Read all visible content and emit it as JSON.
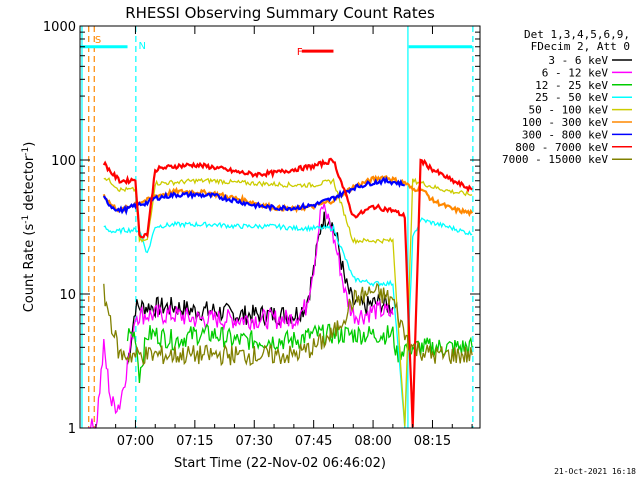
{
  "chart_data": {
    "type": "line",
    "title": "RHESSI Observing Summary Count Rates",
    "xlabel": "Start Time (22-Nov-02 06:46:02)",
    "ylabel_main": "Count Rate (s",
    "ylabel_sup1": "-1",
    "ylabel_mid": " detector",
    "ylabel_sup2": "-1",
    "ylabel_end": ")",
    "y_scale": "log",
    "ylim": [
      1,
      1000
    ],
    "yticks": [
      {
        "value": 1,
        "label": "1"
      },
      {
        "value": 10,
        "label": "10"
      },
      {
        "value": 100,
        "label": "100"
      },
      {
        "value": 1000,
        "label": "1000"
      }
    ],
    "xlim": [
      406,
      507
    ],
    "xticks": [
      {
        "value": 420,
        "label": "07:00"
      },
      {
        "value": 435,
        "label": "07:15"
      },
      {
        "value": 450,
        "label": "07:30"
      },
      {
        "value": 465,
        "label": "07:45"
      },
      {
        "value": 480,
        "label": "08:00"
      },
      {
        "value": 495,
        "label": "08:15"
      }
    ],
    "legend_header": [
      "Det 1,3,4,5,6,9,",
      "FDecim 2, Att 0"
    ],
    "legend_position": "right",
    "series": [
      {
        "name": "3 - 6 keV",
        "color": "#000000",
        "x": [
          418,
          420,
          425,
          430,
          435,
          440,
          445,
          450,
          455,
          460,
          463,
          465,
          467,
          469,
          471,
          473,
          475,
          478,
          480,
          482,
          485
        ],
        "y": [
          3,
          8,
          8,
          8,
          7.5,
          7.5,
          7,
          7,
          7,
          7,
          8,
          15,
          35,
          38,
          25,
          12,
          8.5,
          8,
          8.5,
          8.5,
          8
        ]
      },
      {
        "name": "6 - 12 keV",
        "color": "#ff00ff",
        "x": [
          408,
          410,
          412,
          414,
          416,
          418,
          420,
          425,
          430,
          435,
          440,
          445,
          450,
          455,
          460,
          463,
          465,
          467,
          469,
          471,
          473,
          475,
          478,
          480,
          482,
          485
        ],
        "y": [
          1,
          1,
          4,
          1.5,
          1.5,
          3,
          7,
          7,
          7,
          6.5,
          6.5,
          6.5,
          6.5,
          6.5,
          6.5,
          8,
          16,
          45,
          35,
          20,
          10,
          7,
          7,
          7.5,
          7.5,
          7
        ]
      },
      {
        "name": "12 - 25 keV",
        "color": "#00cc00",
        "x": [
          418,
          420,
          421,
          423,
          425,
          430,
          435,
          440,
          445,
          450,
          455,
          460,
          465,
          470,
          475,
          480,
          485,
          486,
          488,
          490,
          495,
          500,
          505
        ],
        "y": [
          5,
          5,
          2.5,
          5,
          5,
          4.5,
          5,
          5,
          4.5,
          4.5,
          4.5,
          4.5,
          5,
          5,
          5,
          5,
          5,
          3.5,
          4,
          4,
          4,
          4,
          4
        ]
      },
      {
        "name": "25 - 50 keV",
        "color": "#00ffff",
        "x": [
          412,
          413,
          415,
          417,
          419,
          421,
          423,
          425,
          430,
          435,
          440,
          445,
          450,
          455,
          460,
          465,
          470,
          475,
          480,
          485,
          488,
          490,
          492,
          495,
          500,
          505
        ],
        "y": [
          32,
          30,
          29,
          30,
          30,
          30,
          20,
          32,
          33,
          33,
          33,
          32,
          32,
          32,
          31,
          31,
          31,
          13,
          12,
          12,
          1,
          26,
          36,
          34,
          31,
          28
        ]
      },
      {
        "name": "50 - 100 keV",
        "color": "#cccc00",
        "x": [
          412,
          414,
          416,
          418,
          420,
          421,
          423,
          425,
          430,
          435,
          440,
          445,
          450,
          455,
          460,
          465,
          470,
          475,
          477,
          480,
          485,
          488,
          490,
          492,
          495,
          500,
          505
        ],
        "y": [
          75,
          68,
          60,
          60,
          60,
          25,
          25,
          67,
          68,
          70,
          70,
          68,
          67,
          66,
          65,
          65,
          70,
          25,
          25,
          25,
          25,
          1,
          70,
          68,
          63,
          58,
          55
        ]
      },
      {
        "name": "100 - 300 keV",
        "color": "#ff8800",
        "x": [
          412,
          414,
          416,
          418,
          420,
          423,
          425,
          430,
          435,
          440,
          445,
          450,
          455,
          460,
          465,
          470,
          475,
          480,
          483,
          486,
          488,
          490,
          492,
          495,
          500,
          505
        ],
        "y": [
          55,
          46,
          42,
          44,
          48,
          50,
          54,
          58,
          58,
          56,
          52,
          48,
          44,
          43,
          45,
          50,
          63,
          72,
          75,
          70,
          68,
          60,
          62,
          50,
          43,
          40
        ]
      },
      {
        "name": "300 - 800 keV",
        "color": "#0000ff",
        "x": [
          412,
          414,
          416,
          418,
          420,
          423,
          425,
          430,
          435,
          440,
          445,
          450,
          455,
          460,
          465,
          470,
          475,
          480,
          483,
          486,
          488
        ],
        "y": [
          52,
          45,
          42,
          43,
          46,
          48,
          52,
          55,
          55,
          54,
          50,
          46,
          44,
          44,
          46,
          52,
          62,
          68,
          70,
          68,
          65
        ]
      },
      {
        "name": "800 - 7000 keV",
        "color": "#ff0000",
        "x": [
          412,
          414,
          416,
          418,
          420,
          421,
          423,
          425,
          430,
          435,
          440,
          445,
          450,
          455,
          460,
          465,
          470,
          475,
          477,
          480,
          485,
          488,
          490,
          492,
          495,
          500,
          505
        ],
        "y": [
          95,
          80,
          70,
          70,
          72,
          27,
          28,
          85,
          90,
          92,
          88,
          82,
          78,
          80,
          85,
          90,
          100,
          38,
          40,
          45,
          42,
          38,
          1,
          100,
          85,
          70,
          60
        ]
      },
      {
        "name": "7000 - 15000 keV",
        "color": "#808000",
        "x": [
          412,
          414,
          416,
          418,
          420,
          425,
          430,
          435,
          440,
          445,
          450,
          455,
          460,
          465,
          470,
          475,
          480,
          485,
          488,
          490,
          495,
          500,
          505
        ],
        "y": [
          10,
          6,
          3.5,
          3.5,
          3.5,
          3.5,
          3.5,
          3.5,
          3.5,
          3.5,
          3.5,
          3.5,
          3.5,
          4,
          5,
          9,
          10.5,
          9,
          5,
          4,
          3.5,
          3.5,
          3.5
        ]
      }
    ],
    "annotations": [
      {
        "text": "N",
        "x": 420,
        "color": "#00ffff"
      },
      {
        "text": "F",
        "x": 460,
        "color": "#ff0000"
      },
      {
        "text": "S",
        "x": 409,
        "color": "#ff8800"
      }
    ],
    "flare_bar": {
      "x_start": 462,
      "x_end": 470,
      "value": 650,
      "color": "#ff0000"
    },
    "night_bar": [
      {
        "x_start": 406,
        "x_end": 418,
        "value": 700,
        "color": "#00ffff"
      },
      {
        "x_start": 489,
        "x_end": 505,
        "value": 700,
        "color": "#00ffff"
      }
    ],
    "vlines": [
      {
        "x": 406.5,
        "color": "#00ffff",
        "dash": false
      },
      {
        "x": 408.2,
        "color": "#ff8800",
        "dash": true
      },
      {
        "x": 409.6,
        "color": "#ff8800",
        "dash": true
      },
      {
        "x": 420.1,
        "color": "#00ffff",
        "dash": true
      },
      {
        "x": 488.8,
        "color": "#00ffff",
        "dash": false
      },
      {
        "x": 505.2,
        "color": "#00ffff",
        "dash": true
      }
    ],
    "footer": "21-Oct-2021 16:18"
  }
}
